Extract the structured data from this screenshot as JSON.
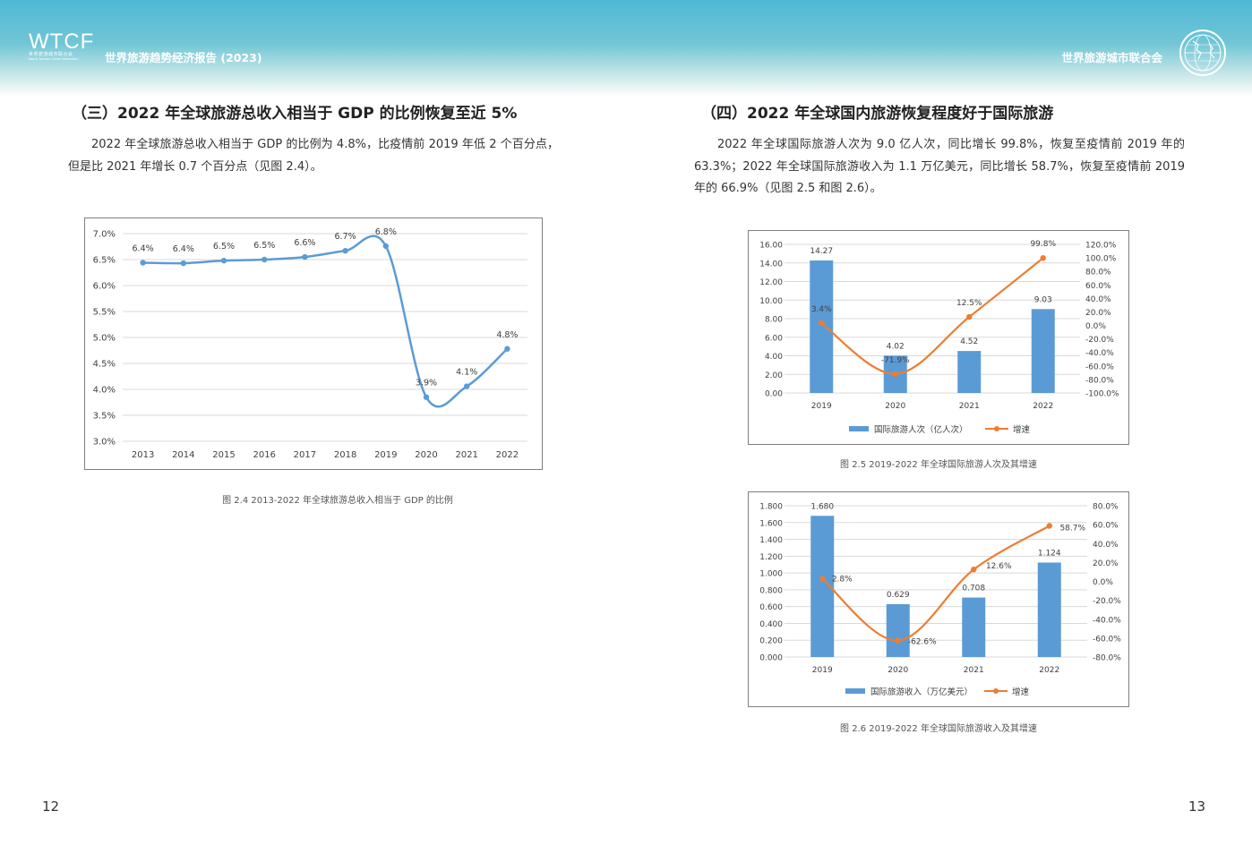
{
  "header": {
    "logo": {
      "main": "WTCF",
      "cn": "世界旅游城市联合会",
      "en": "World Tourism Cities Federation"
    },
    "report_title": "世界旅游趋势经济报告 (2023)",
    "org_name": "世界旅游城市联合会",
    "emblem_icon": "globe-emblem-icon"
  },
  "left": {
    "title": "（三）2022 年全球旅游总收入相当于 GDP 的比例恢复至近 5%",
    "paragraph": "2022 年全球旅游总收入相当于 GDP 的比例为 4.8%，比疫情前 2019 年低 2 个百分点，但是比 2021 年增长 0.7 个百分点（见图 2.4）。",
    "caption": "图 2.4 2013-2022 年全球旅游总收入相当于 GDP 的比例",
    "page_number": "12"
  },
  "right": {
    "title": "（四）2022 年全球国内旅游恢复程度好于国际旅游",
    "paragraph": "2022 年全球国际旅游人次为 9.0 亿人次，同比增长 99.8%，恢复至疫情前 2019 年的 63.3%；2022 年全球国际旅游收入为 1.1 万亿美元，同比增长 58.7%，恢复至疫情前 2019 年的 66.9%（见图 2.5 和图 2.6）。",
    "caption1": "图 2.5 2019-2022 年全球国际旅游人次及其增速",
    "caption2": "图 2.6 2019-2022 年全球国际旅游收入及其增速",
    "page_number": "13"
  },
  "chart_data": [
    {
      "type": "line",
      "categories": [
        "2013",
        "2014",
        "2015",
        "2016",
        "2017",
        "2018",
        "2019",
        "2020",
        "2021",
        "2022"
      ],
      "values": [
        6.44,
        6.43,
        6.48,
        6.5,
        6.55,
        6.67,
        6.76,
        3.85,
        4.06,
        4.78
      ],
      "data_labels": [
        "6.4%",
        "6.4%",
        "6.5%",
        "6.5%",
        "6.6%",
        "6.7%",
        "6.8%",
        "3.9%",
        "4.1%",
        "4.8%"
      ],
      "yticks": [
        "3.0%",
        "3.5%",
        "4.0%",
        "4.5%",
        "5.0%",
        "5.5%",
        "6.0%",
        "6.5%",
        "7.0%"
      ],
      "ylim": [
        3.0,
        7.0
      ],
      "color": "#5b9bd5",
      "grid": true
    },
    {
      "type": "bar",
      "categories": [
        "2019",
        "2020",
        "2021",
        "2022"
      ],
      "series": [
        {
          "name": "国际旅游人次（亿人次）",
          "kind": "bar",
          "axis": "left",
          "values": [
            14.27,
            4.02,
            4.52,
            9.03
          ],
          "labels": [
            "14.27",
            "4.02",
            "4.52",
            "9.03"
          ],
          "color": "#5b9bd5"
        },
        {
          "name": "增速",
          "kind": "line",
          "axis": "right",
          "values": [
            3.4,
            -71.9,
            12.5,
            99.8
          ],
          "labels": [
            "3.4%",
            "-71.9%",
            "12.5%",
            "99.8%"
          ],
          "color": "#ed7d31"
        }
      ],
      "yleft_ticks": [
        "0.00",
        "2.00",
        "4.00",
        "6.00",
        "8.00",
        "10.00",
        "12.00",
        "14.00",
        "16.00"
      ],
      "yleft_lim": [
        0,
        16
      ],
      "yright_ticks": [
        "-100.0%",
        "-80.0%",
        "-60.0%",
        "-40.0%",
        "-20.0%",
        "0.0%",
        "20.0%",
        "40.0%",
        "60.0%",
        "80.0%",
        "100.0%",
        "120.0%"
      ],
      "yright_lim": [
        -100,
        120
      ],
      "legend_position": "bottom",
      "grid": true
    },
    {
      "type": "bar",
      "categories": [
        "2019",
        "2020",
        "2021",
        "2022"
      ],
      "series": [
        {
          "name": "国际旅游收入（万亿美元）",
          "kind": "bar",
          "axis": "left",
          "values": [
            1.68,
            0.629,
            0.708,
            1.124
          ],
          "labels": [
            "1.680",
            "0.629",
            "0.708",
            "1.124"
          ],
          "color": "#5b9bd5"
        },
        {
          "name": "增速",
          "kind": "line",
          "axis": "right",
          "values": [
            2.8,
            -62.6,
            12.6,
            58.7
          ],
          "labels": [
            "2.8%",
            "-62.6%",
            "12.6%",
            "58.7%"
          ],
          "color": "#ed7d31"
        }
      ],
      "yleft_ticks": [
        "0.000",
        "0.200",
        "0.400",
        "0.600",
        "0.800",
        "1.000",
        "1.200",
        "1.400",
        "1.600",
        "1.800"
      ],
      "yleft_lim": [
        0,
        1.8
      ],
      "yright_ticks": [
        "-80.0%",
        "-60.0%",
        "-40.0%",
        "-20.0%",
        "0.0%",
        "20.0%",
        "40.0%",
        "60.0%",
        "80.0%"
      ],
      "yright_lim": [
        -80,
        80
      ],
      "legend_position": "bottom",
      "grid": true
    }
  ]
}
